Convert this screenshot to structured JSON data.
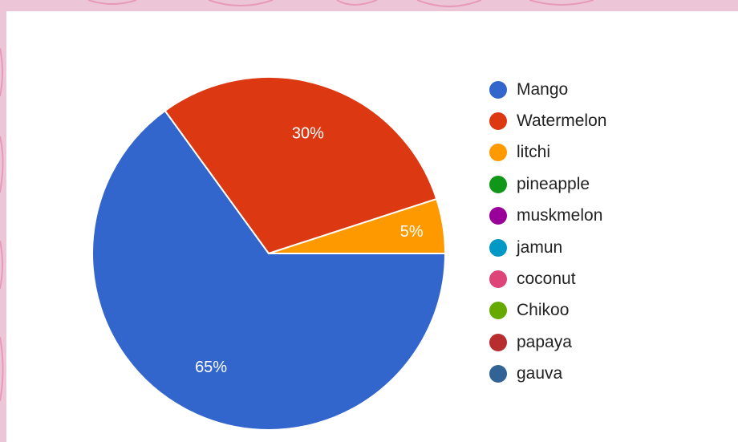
{
  "chart_data": {
    "type": "pie",
    "slices": [
      {
        "label": "Mango",
        "value": 65,
        "display": "65%",
        "color": "#3366cc"
      },
      {
        "label": "Watermelon",
        "value": 30,
        "display": "30%",
        "color": "#dc3912"
      },
      {
        "label": "litchi",
        "value": 5,
        "display": "5%",
        "color": "#ff9900"
      },
      {
        "label": "pineapple",
        "value": 0,
        "display": "",
        "color": "#109618"
      },
      {
        "label": "muskmelon",
        "value": 0,
        "display": "",
        "color": "#990099"
      },
      {
        "label": "jamun",
        "value": 0,
        "display": "",
        "color": "#0099c6"
      },
      {
        "label": "coconut",
        "value": 0,
        "display": "",
        "color": "#dd4477"
      },
      {
        "label": "Chikoo",
        "value": 0,
        "display": "",
        "color": "#66aa00"
      },
      {
        "label": "papaya",
        "value": 0,
        "display": "",
        "color": "#b82e2e"
      },
      {
        "label": "gauva",
        "value": 0,
        "display": "",
        "color": "#316395"
      }
    ],
    "legend_position": "right"
  },
  "background_color": "#ecc6d6"
}
